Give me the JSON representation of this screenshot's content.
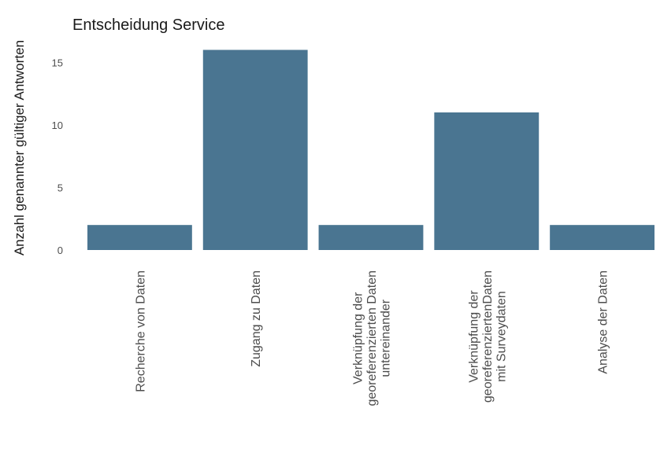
{
  "chart_data": {
    "type": "bar",
    "title": "Entscheidung Service",
    "xlabel": "",
    "ylabel": "Anzahl genannter gültiger Antworten",
    "categories": [
      [
        "Recherche von Daten"
      ],
      [
        "Zugang zu Daten"
      ],
      [
        "Verknüpfung der",
        "georeferenzierten Daten",
        "untereinander"
      ],
      [
        "Verknüpfung der",
        "georeferenziertenDaten",
        "mit Surveydaten"
      ],
      [
        "Analyse der Daten"
      ]
    ],
    "values": [
      2,
      16,
      2,
      11,
      2
    ],
    "ylim": [
      0,
      16.5
    ],
    "yticks": [
      0,
      5,
      10,
      15
    ],
    "grid": false,
    "bar_color": "#4a7591"
  }
}
